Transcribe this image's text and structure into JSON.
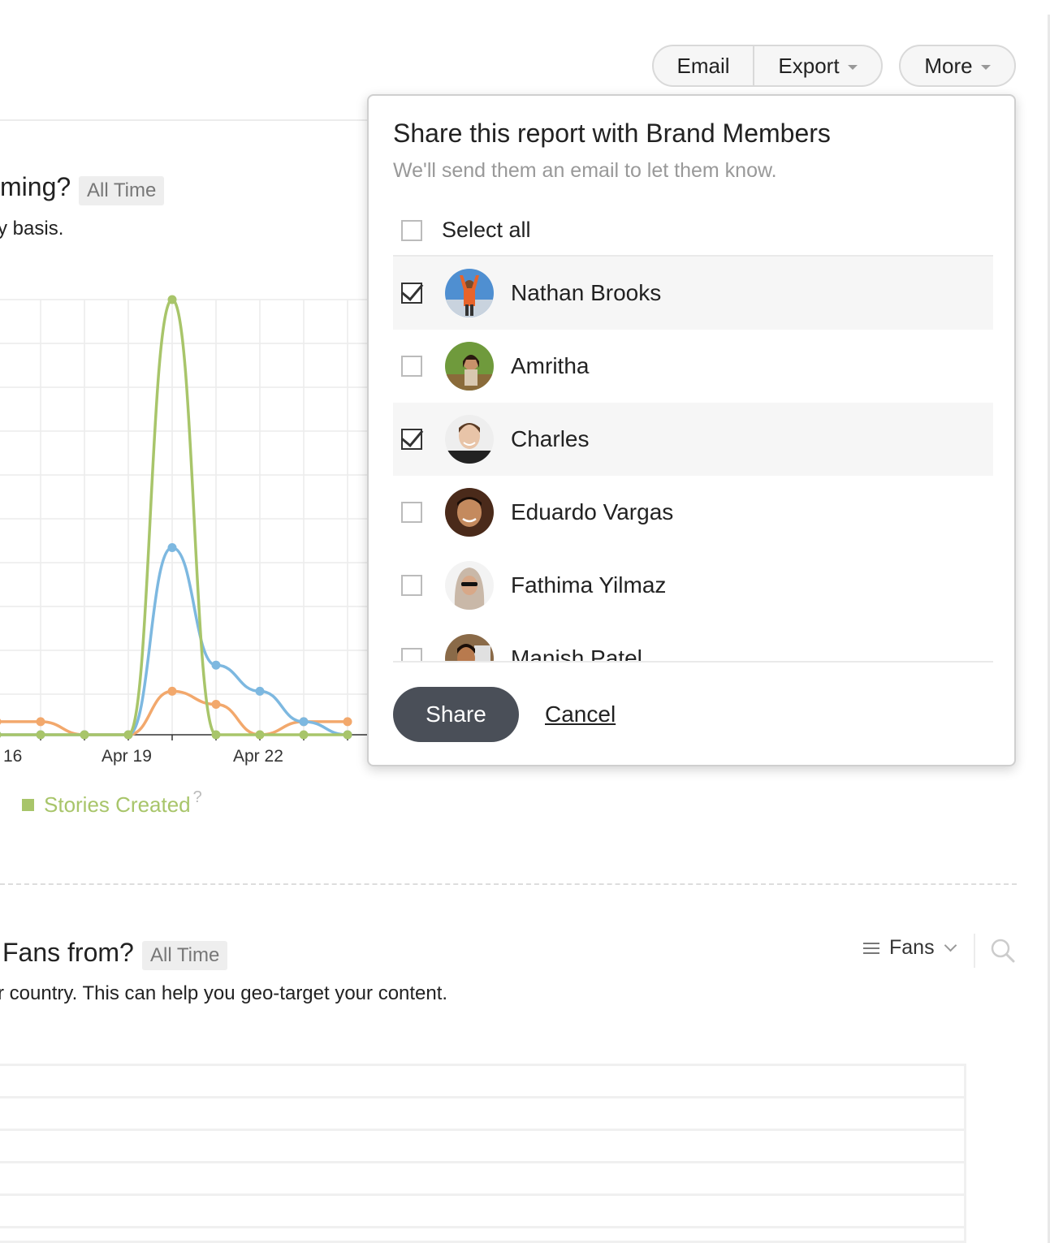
{
  "toolbar": {
    "email_label": "Email",
    "export_label": "Export",
    "more_label": "More"
  },
  "section1": {
    "title_fragment": "ming?",
    "badge": "All Time",
    "desc_fragment": "y basis."
  },
  "chart_data": {
    "type": "line",
    "x_tick_labels": [
      "16",
      "Apr 19",
      "Apr 22"
    ],
    "series": [
      {
        "name": "Stories Created",
        "color": "#a8c56a",
        "values": [
          0,
          0,
          0,
          0,
          100,
          0,
          0,
          0,
          0
        ]
      },
      {
        "color": "#7db8e0",
        "values": [
          0,
          0,
          0,
          0,
          43,
          16,
          10,
          3,
          0
        ]
      },
      {
        "color": "#f2a86c",
        "values": [
          3,
          3,
          0,
          0,
          10,
          7,
          0,
          3,
          3
        ]
      }
    ],
    "legend": [
      "Stories Created"
    ],
    "grid": true
  },
  "section2": {
    "title_fragment": "Fans from?",
    "badge": "All Time",
    "desc_fragment": "r country. This can help you geo-target your content.",
    "sort_label": "Fans"
  },
  "popover": {
    "title": "Share this report with Brand Members",
    "subtitle": "We'll send them an email to let them know.",
    "select_all_label": "Select all",
    "members": [
      {
        "name": "Nathan Brooks",
        "checked": true
      },
      {
        "name": "Amritha",
        "checked": false
      },
      {
        "name": "Charles",
        "checked": true
      },
      {
        "name": "Eduardo Vargas",
        "checked": false
      },
      {
        "name": "Fathima Yilmaz",
        "checked": false
      },
      {
        "name": "Manish Patel",
        "checked": false
      }
    ],
    "share_label": "Share",
    "cancel_label": "Cancel"
  }
}
